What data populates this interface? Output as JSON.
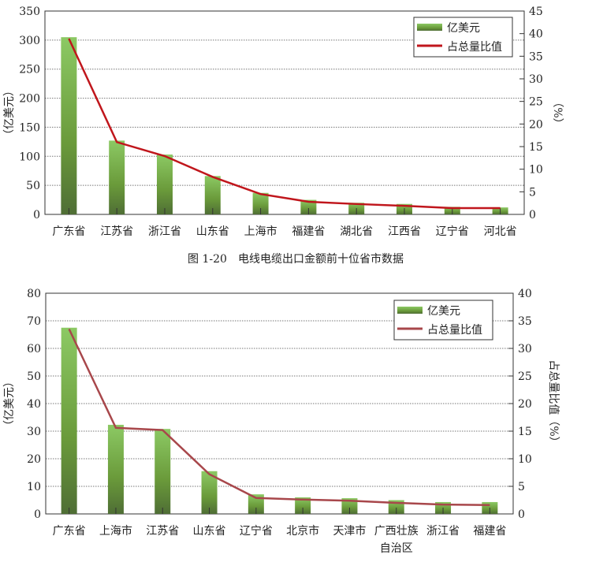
{
  "chart_data": [
    {
      "type": "bar",
      "categories": [
        "广东省",
        "江苏省",
        "浙江省",
        "山东省",
        "上海市",
        "福建省",
        "湖北省",
        "江西省",
        "辽宁省",
        "河北省"
      ],
      "series": [
        {
          "name": "亿美元",
          "type": "bar",
          "axis": "left",
          "values": [
            305,
            127,
            103,
            66,
            37,
            25,
            20,
            18,
            13,
            12
          ]
        },
        {
          "name": "占总量比值",
          "type": "line",
          "axis": "right",
          "values": [
            38.9,
            16,
            12.9,
            8.3,
            4.5,
            2.8,
            2.3,
            1.9,
            1.4,
            1.4
          ]
        }
      ],
      "ylabel": "（亿美元）",
      "y2label": "（%）",
      "ylim": [
        0,
        350
      ],
      "y2lim": [
        0,
        45
      ],
      "yticks": [
        0,
        50,
        100,
        150,
        200,
        250,
        300,
        350
      ],
      "y2ticks": [
        0,
        5,
        10,
        15,
        20,
        25,
        30,
        35,
        40,
        45
      ],
      "caption": "图 1-20　电线电缆出口金额前十位省市数据",
      "grid": true,
      "legend": "top-right",
      "line_color": "#c0161c"
    },
    {
      "type": "bar",
      "categories": [
        "广东省",
        "上海市",
        "江苏省",
        "山东省",
        "辽宁省",
        "北京市",
        "天津市",
        "广西壮族\n自治区",
        "浙江省",
        "福建省"
      ],
      "series": [
        {
          "name": "亿美元",
          "type": "bar",
          "axis": "left",
          "values": [
            67.5,
            32.3,
            30.8,
            15.5,
            7.1,
            6,
            5.7,
            5,
            4.3,
            4.3
          ]
        },
        {
          "name": "占总量比值",
          "type": "line",
          "axis": "right",
          "values": [
            33.5,
            15.6,
            15.2,
            7.2,
            2.9,
            2.6,
            2.4,
            2,
            1.7,
            1.6
          ]
        }
      ],
      "ylabel": "（亿美元）",
      "y2label": "占总量比值（%）",
      "ylim": [
        0,
        80
      ],
      "y2lim": [
        0,
        40
      ],
      "yticks": [
        0,
        10,
        20,
        30,
        40,
        50,
        60,
        70,
        80
      ],
      "y2ticks": [
        0,
        5,
        10,
        15,
        20,
        25,
        30,
        35,
        40
      ],
      "grid": true,
      "legend": "top-right",
      "line_color": "#a8474b"
    }
  ]
}
